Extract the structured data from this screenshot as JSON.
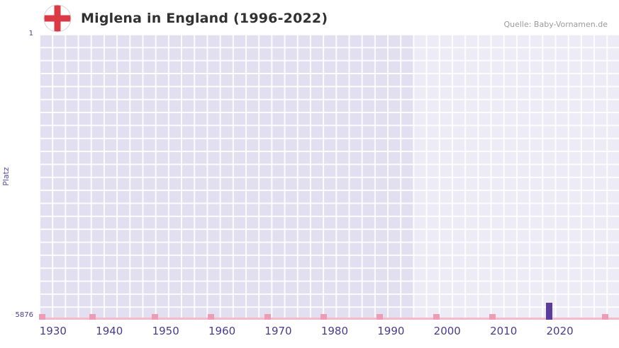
{
  "header": {
    "title": "Miglena in England (1996-2022)",
    "source": "Quelle: Baby-Vornamen.de",
    "flag_icon": "england-flag-icon"
  },
  "chart_data": {
    "type": "bar",
    "title": "Miglena in England (1996-2022)",
    "xlabel": "",
    "ylabel": "Platz",
    "x_range": [
      1927.5,
      2030.5
    ],
    "x_ticks": [
      "1930",
      "1940",
      "1950",
      "1960",
      "1970",
      "1980",
      "1990",
      "2000",
      "2010",
      "2020"
    ],
    "y_axis": {
      "top_label": "1",
      "bottom_label": "5876",
      "ylim": [
        1,
        5876
      ],
      "inverted": true
    },
    "grid": true,
    "legend_position": "none",
    "highlight_region": {
      "start_year": 1994,
      "end_year": 2030.5
    },
    "series": [
      {
        "name": "Platz",
        "color": "#5b3c9d",
        "points": [
          {
            "year": 2018,
            "rank": 5876
          }
        ]
      }
    ],
    "decade_markers": {
      "color": "#ee9cb5",
      "years": [
        1928,
        1937,
        1948,
        1958,
        1968,
        1978,
        1988,
        1998,
        2008,
        2028
      ]
    }
  },
  "colors": {
    "plot_background": "#e2dff0",
    "grid_line": "#ffffff",
    "axis_line": "#f3bac9",
    "bar": "#5b3c9d",
    "decade_marker": "#ee9cb5",
    "tick_label": "#463d8e",
    "title": "#313131",
    "source": "#9b9b9b",
    "flag_red": "#d93a46"
  }
}
